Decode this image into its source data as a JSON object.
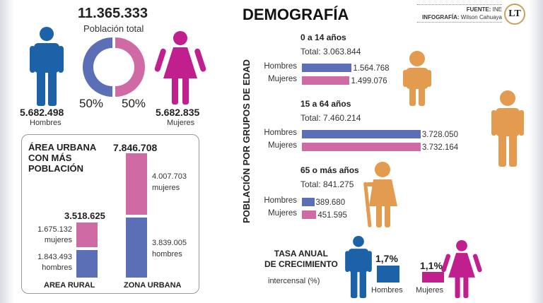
{
  "colors": {
    "men_icon": "#1b62a8",
    "women_icon": "#c21f8e",
    "men_bar": "#5a6fb5",
    "women_bar": "#cf6aa5",
    "age_icon": "#e39b50"
  },
  "overview": {
    "total": "11.365.333",
    "total_label": "Población total",
    "men_value": "5.682.498",
    "men_label": "Hombres",
    "women_value": "5.682.835",
    "women_label": "Mujeres",
    "men_pct": "50%",
    "women_pct": "50%"
  },
  "area": {
    "title_lines": [
      "ÁREA URBANA",
      "CON MÁS",
      "POBLACIÓN"
    ],
    "rural": {
      "label": "AREA RURAL",
      "total": "3.518.625",
      "women_value": "1.675.132",
      "women_label": "mujeres",
      "men_value": "1.843.493",
      "men_label": "hombres"
    },
    "urban": {
      "label": "ZONA URBANA",
      "total": "7.846.708",
      "women_value": "4.007.703",
      "women_label": "mujeres",
      "men_value": "3.839.005",
      "men_label": "hombres"
    }
  },
  "header": {
    "title": "DEMOGRAFÍA",
    "source_label": "FUENTE:",
    "source": "INE",
    "credit_label": "INFOGRAFÍA:",
    "credit": "Wilson Cahuaya",
    "logo": "LT"
  },
  "age": {
    "axis_title": "POBLACIÓN POR GRUPOS DE EDAD",
    "men_label": "Hombres",
    "women_label": "Mujeres",
    "groups": [
      {
        "title": "0 a 14 años",
        "total": "Total: 3.063.844",
        "men": "1.564.768",
        "women": "1.499.076"
      },
      {
        "title": "15 a 64 años",
        "total": "Total: 7.460.214",
        "men": "3.728.050",
        "women": "3.732.164"
      },
      {
        "title": "65 o más años",
        "total": "Total: 841.275",
        "men": "389.680",
        "women": "451.595"
      }
    ]
  },
  "growth": {
    "title_lines": [
      "TASA ANUAL",
      "DE CRECIMIENTO"
    ],
    "subtitle": "intercensal (%)",
    "men_value": "1,7%",
    "women_value": "1,1%",
    "men_label": "Hombres",
    "women_label": "Mujeres"
  },
  "chart_data": [
    {
      "type": "pie",
      "title": "Población total",
      "categories": [
        "Hombres",
        "Mujeres"
      ],
      "values": [
        5682498,
        5682835
      ],
      "percent": [
        50,
        50
      ]
    },
    {
      "type": "bar",
      "stacked": true,
      "title": "ÁREA URBANA CON MÁS POBLACIÓN",
      "categories": [
        "AREA RURAL",
        "ZONA URBANA"
      ],
      "series": [
        {
          "name": "hombres",
          "values": [
            1843493,
            3839005
          ]
        },
        {
          "name": "mujeres",
          "values": [
            1675132,
            4007703
          ]
        }
      ],
      "totals": [
        3518625,
        7846708
      ]
    },
    {
      "type": "bar",
      "orientation": "horizontal",
      "title": "POBLACIÓN POR GRUPOS DE EDAD",
      "categories": [
        "0 a 14 años",
        "15 a 64 años",
        "65 o más años"
      ],
      "series": [
        {
          "name": "Hombres",
          "values": [
            1564768,
            3728050,
            389680
          ]
        },
        {
          "name": "Mujeres",
          "values": [
            1499076,
            3732164,
            451595
          ]
        }
      ],
      "totals": [
        3063844,
        7460214,
        841275
      ]
    },
    {
      "type": "bar",
      "title": "TASA ANUAL DE CRECIMIENTO intercensal (%)",
      "categories": [
        "Hombres",
        "Mujeres"
      ],
      "values": [
        1.7,
        1.1
      ]
    }
  ]
}
